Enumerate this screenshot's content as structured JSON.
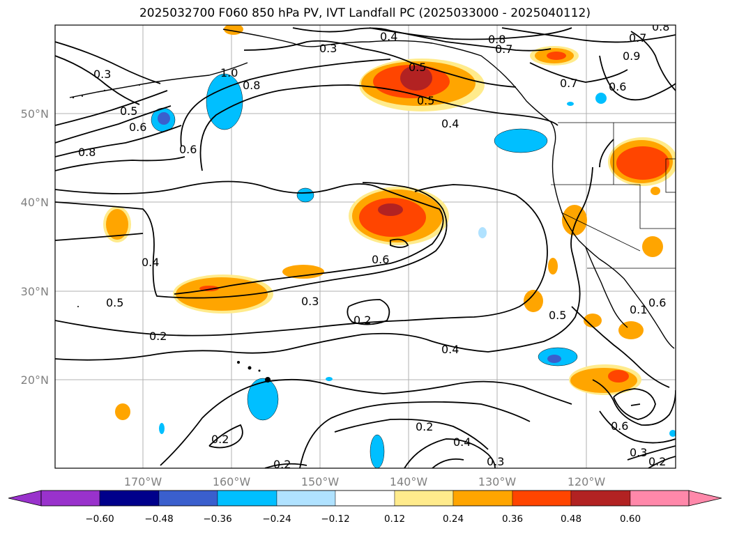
{
  "title": "2025032700 F060 850 hPa PV, IVT Landfall PC (2025033000 - 2025040112)",
  "lat_labels": [
    "50°N",
    "40°N",
    "30°N",
    "20°N"
  ],
  "lon_labels": [
    "170°W",
    "160°W",
    "150°W",
    "140°W",
    "130°W",
    "120°W"
  ],
  "colorbar": {
    "labels": [
      "−0.60",
      "−0.48",
      "−0.36",
      "−0.24",
      "−0.12",
      "0.12",
      "0.24",
      "0.36",
      "0.48",
      "0.60"
    ],
    "colors": [
      "#9932cc",
      "#00008b",
      "#3a5fcd",
      "#00bfff",
      "#b0e2ff",
      "#ffffff",
      "#ffeb8c",
      "#ffa500",
      "#ff4500",
      "#b22222",
      "#ff88aa"
    ]
  },
  "contour_labels": [
    "0.4",
    "0.8",
    "0.7",
    "0.7",
    "0.8",
    "0.5",
    "0.5",
    "0.4",
    "0.7",
    "0.6",
    "0.3",
    "0.5",
    "0.6",
    "1.0",
    "0.8",
    "0.6",
    "0.8",
    "0.3",
    "0.4",
    "0.6",
    "0.5",
    "0.3",
    "0.2",
    "0.2",
    "0.4",
    "0.5",
    "0.2",
    "0.2",
    "0.4",
    "0.3",
    "0.6",
    "0.3",
    "0.2",
    "0.2",
    "0.1",
    "0.6",
    "0.9"
  ]
}
